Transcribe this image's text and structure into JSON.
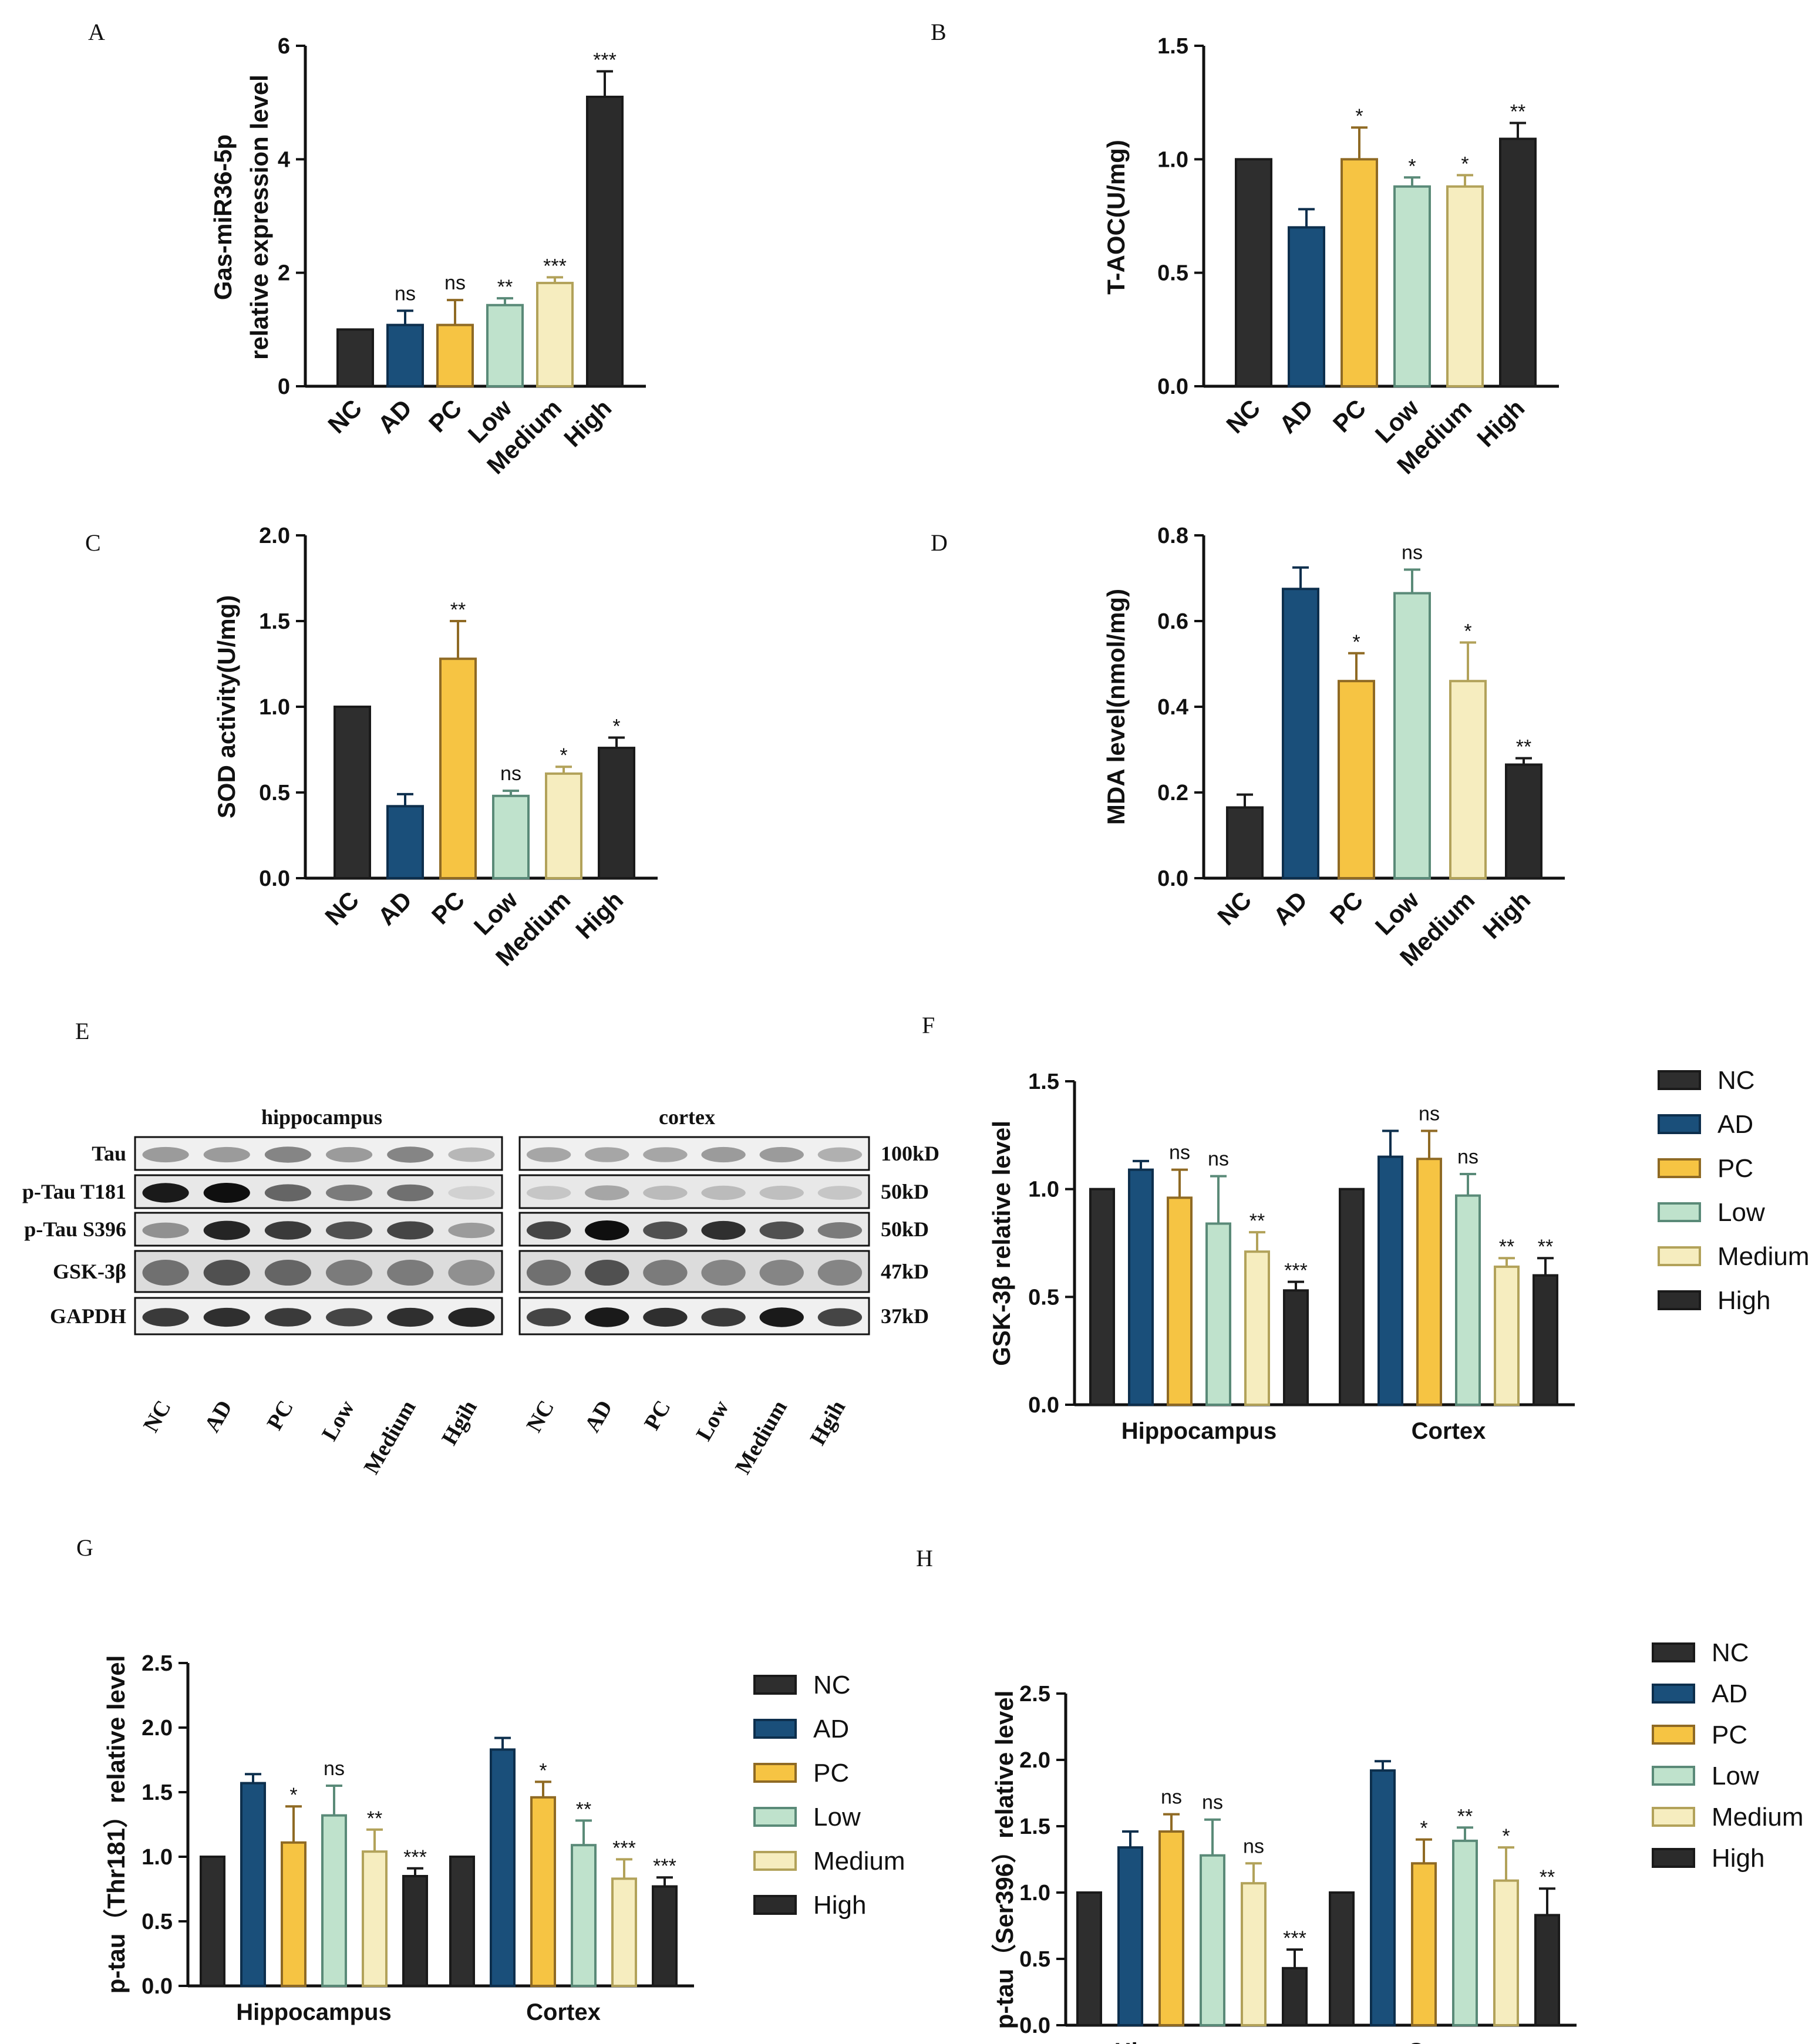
{
  "colors": {
    "NC": "#2e2e2e",
    "AD": "#1a4f7a",
    "PC": "#f6c443",
    "Low": "#bfe2cc",
    "Medium": "#f6edbf",
    "High": "#2b2b2b",
    "edge": {
      "NC": "#1a1a1a",
      "AD": "#0d2f4d",
      "PC": "#8f6a24",
      "Low": "#5a8a78",
      "Medium": "#b2a25a",
      "High": "#1a1a1a"
    }
  },
  "chart_data": [
    {
      "panel": "A",
      "type": "bar",
      "ylabel_lines": [
        "Gas-miR36-5p",
        "relative expression level"
      ],
      "ylim": [
        0,
        6
      ],
      "yticks": [
        "0",
        "2",
        "4",
        "6"
      ],
      "categories": [
        "NC",
        "AD",
        "PC",
        "Low",
        "Medium",
        "High"
      ],
      "values": [
        1.0,
        1.08,
        1.08,
        1.43,
        1.82,
        5.1
      ],
      "errors": [
        0,
        0.25,
        0.44,
        0.12,
        0.1,
        0.45
      ],
      "significance": [
        "",
        "ns",
        "ns",
        "**",
        "***",
        "***"
      ]
    },
    {
      "panel": "B",
      "type": "bar",
      "ylabel_lines": [
        "T-AOC(U/mg)"
      ],
      "ylim": [
        0,
        1.5
      ],
      "yticks": [
        "0.0",
        "0.5",
        "1.0",
        "1.5"
      ],
      "categories": [
        "NC",
        "AD",
        "PC",
        "Low",
        "Medium",
        "High"
      ],
      "values": [
        1.0,
        0.7,
        1.0,
        0.88,
        0.88,
        1.09
      ],
      "errors": [
        0,
        0.08,
        0.14,
        0.04,
        0.05,
        0.07
      ],
      "significance": [
        "",
        "",
        "*",
        "*",
        "*",
        "**"
      ]
    },
    {
      "panel": "C",
      "type": "bar",
      "ylabel_lines": [
        "SOD  activity(U/mg)"
      ],
      "ylim": [
        0,
        2
      ],
      "yticks": [
        "0.0",
        "0.5",
        "1.0",
        "1.5",
        "2.0"
      ],
      "categories": [
        "NC",
        "AD",
        "PC",
        "Low",
        "Medium",
        "High"
      ],
      "values": [
        1.0,
        0.42,
        1.28,
        0.48,
        0.61,
        0.76
      ],
      "errors": [
        0,
        0.07,
        0.22,
        0.03,
        0.04,
        0.06
      ],
      "significance": [
        "",
        "",
        "**",
        "ns",
        "*",
        "*"
      ]
    },
    {
      "panel": "D",
      "type": "bar",
      "ylabel_lines": [
        "MDA level(nmol/mg)"
      ],
      "ylim": [
        0,
        0.8
      ],
      "yticks": [
        "0.0",
        "0.2",
        "0.4",
        "0.6",
        "0.8"
      ],
      "categories": [
        "NC",
        "AD",
        "PC",
        "Low",
        "Medium",
        "High"
      ],
      "values": [
        0.165,
        0.675,
        0.46,
        0.665,
        0.46,
        0.265
      ],
      "errors": [
        0.03,
        0.05,
        0.065,
        0.055,
        0.09,
        0.015
      ],
      "significance": [
        "",
        "",
        "*",
        "ns",
        "*",
        "**"
      ]
    },
    {
      "panel": "F",
      "type": "grouped-bar",
      "ylabel_lines": [
        "GSK-3β relative  level"
      ],
      "ylim": [
        0,
        1.5
      ],
      "yticks": [
        "0.0",
        "0.5",
        "1.0",
        "1.5"
      ],
      "groups": [
        "Hippocampus",
        "Cortex"
      ],
      "series_names": [
        "NC",
        "AD",
        "PC",
        "Low",
        "Medium",
        "High"
      ],
      "values": [
        [
          1.0,
          1.09,
          0.96,
          0.84,
          0.71,
          0.53
        ],
        [
          1.0,
          1.15,
          1.14,
          0.97,
          0.64,
          0.6
        ]
      ],
      "errors": [
        [
          0,
          0.04,
          0.13,
          0.22,
          0.09,
          0.04
        ],
        [
          0,
          0.12,
          0.13,
          0.1,
          0.04,
          0.08
        ]
      ],
      "significance": [
        [
          "",
          "",
          "ns",
          "ns",
          "**",
          "***"
        ],
        [
          "",
          "",
          "ns",
          "ns",
          "**",
          "**"
        ]
      ]
    },
    {
      "panel": "G",
      "type": "grouped-bar",
      "ylabel_lines": [
        "p-tau（Thr181）relative level"
      ],
      "ylim": [
        0,
        2.5
      ],
      "yticks": [
        "0.0",
        "0.5",
        "1.0",
        "1.5",
        "2.0",
        "2.5"
      ],
      "groups": [
        "Hippocampus",
        "Cortex"
      ],
      "series_names": [
        "NC",
        "AD",
        "PC",
        "Low",
        "Medium",
        "High"
      ],
      "values": [
        [
          1.0,
          1.57,
          1.11,
          1.32,
          1.04,
          0.85
        ],
        [
          1.0,
          1.83,
          1.46,
          1.09,
          0.83,
          0.77
        ]
      ],
      "errors": [
        [
          0,
          0.07,
          0.28,
          0.23,
          0.17,
          0.06
        ],
        [
          0,
          0.09,
          0.12,
          0.19,
          0.15,
          0.07
        ]
      ],
      "significance": [
        [
          "",
          "",
          "*",
          "ns",
          "**",
          "***"
        ],
        [
          "",
          "",
          "*",
          "**",
          "***",
          "***"
        ]
      ]
    },
    {
      "panel": "H",
      "type": "grouped-bar",
      "ylabel_lines": [
        "p-tau（Ser396）relative level"
      ],
      "ylim": [
        0,
        2.5
      ],
      "yticks": [
        "0.0",
        "0.5",
        "1.0",
        "1.5",
        "2.0",
        "2.5"
      ],
      "groups": [
        "Hippocampus",
        "Cortex"
      ],
      "series_names": [
        "NC",
        "AD",
        "PC",
        "Low",
        "Medium",
        "High"
      ],
      "values": [
        [
          1.0,
          1.34,
          1.46,
          1.28,
          1.07,
          0.43
        ],
        [
          1.0,
          1.92,
          1.22,
          1.39,
          1.09,
          0.83
        ]
      ],
      "errors": [
        [
          0,
          0.12,
          0.13,
          0.27,
          0.15,
          0.14
        ],
        [
          0,
          0.07,
          0.18,
          0.1,
          0.25,
          0.2
        ]
      ],
      "significance": [
        [
          "",
          "",
          "ns",
          "ns",
          "ns",
          "***"
        ],
        [
          "",
          "",
          "*",
          "**",
          "*",
          "**"
        ]
      ]
    }
  ],
  "legend_items": [
    "NC",
    "AD",
    "PC",
    "Low",
    "Medium",
    "High"
  ],
  "panel_labels": {
    "A": "A",
    "B": "B",
    "C": "C",
    "D": "D",
    "E": "E",
    "F": "F",
    "G": "G",
    "H": "H"
  },
  "western_blot": {
    "panel": "E",
    "sections": [
      "hippocampus",
      "cortex"
    ],
    "proteins": [
      "Tau",
      "p-Tau T181",
      "p-Tau S396",
      "GSK-3β",
      "GAPDH"
    ],
    "sizes": [
      "100kD",
      "50kD",
      "50kD",
      "47kD",
      "37kD"
    ],
    "lanes": [
      "NC",
      "AD",
      "PC",
      "Low",
      "Medium",
      "Hgih"
    ],
    "band_intensity": {
      "hippocampus": [
        [
          0.35,
          0.35,
          0.45,
          0.35,
          0.45,
          0.22
        ],
        [
          0.95,
          1.0,
          0.6,
          0.5,
          0.55,
          0.1
        ],
        [
          0.4,
          0.9,
          0.8,
          0.7,
          0.75,
          0.35
        ],
        [
          0.55,
          0.7,
          0.6,
          0.5,
          0.5,
          0.4
        ],
        [
          0.8,
          0.85,
          0.8,
          0.75,
          0.85,
          0.9
        ]
      ],
      "cortex": [
        [
          0.3,
          0.3,
          0.3,
          0.35,
          0.35,
          0.25
        ],
        [
          0.15,
          0.3,
          0.2,
          0.2,
          0.18,
          0.15
        ],
        [
          0.75,
          1.0,
          0.7,
          0.85,
          0.7,
          0.5
        ],
        [
          0.55,
          0.7,
          0.5,
          0.45,
          0.45,
          0.45
        ],
        [
          0.75,
          0.95,
          0.85,
          0.8,
          0.95,
          0.75
        ]
      ]
    }
  }
}
